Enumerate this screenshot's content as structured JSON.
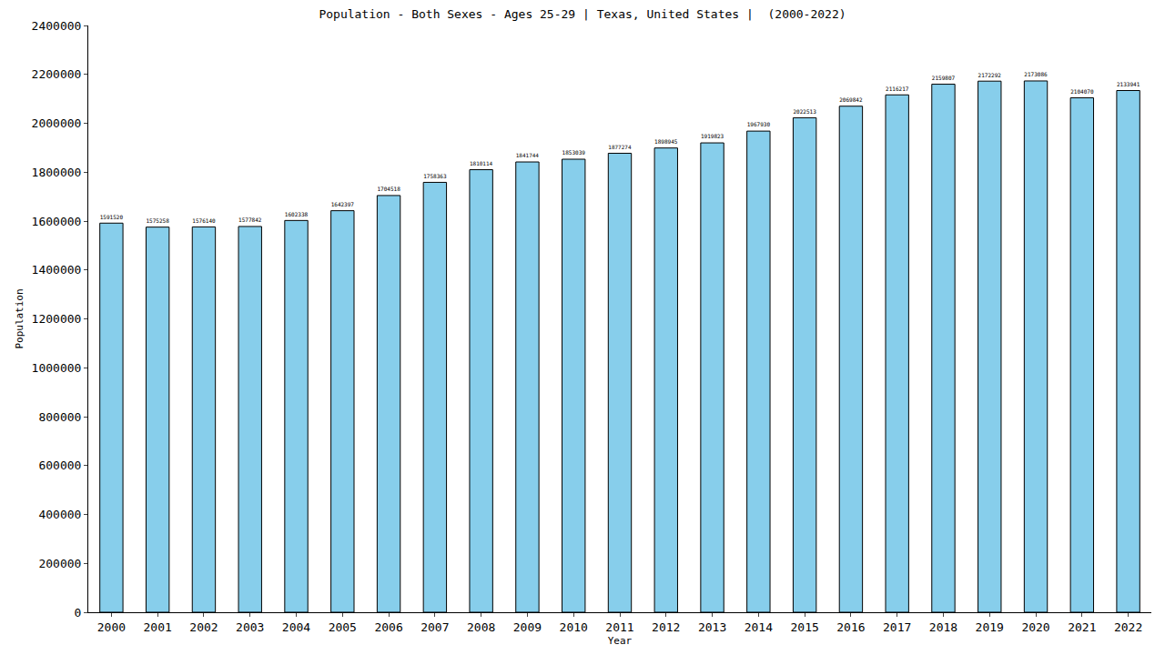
{
  "chart_data": {
    "type": "bar",
    "title": "Population - Both Sexes - Ages 25-29 | Texas, United States |  (2000-2022)",
    "x_label": "Year",
    "y_label": "Population",
    "categories": [
      "2000",
      "2001",
      "2002",
      "2003",
      "2004",
      "2005",
      "2006",
      "2007",
      "2008",
      "2009",
      "2010",
      "2011",
      "2012",
      "2013",
      "2014",
      "2015",
      "2016",
      "2017",
      "2018",
      "2019",
      "2020",
      "2021",
      "2022"
    ],
    "values": [
      1591520,
      1575258,
      1576140,
      1577842,
      1602338,
      1642397,
      1704518,
      1758363,
      1810114,
      1841744,
      1853039,
      1877274,
      1898945,
      1919823,
      1967930,
      2022513,
      2069842,
      2116217,
      2159807,
      2172292,
      2173086,
      2104070,
      2133941
    ],
    "color": "#87ceeb",
    "ylim": [
      0,
      2400000
    ],
    "yticks": [
      0,
      200000,
      400000,
      600000,
      800000,
      1000000,
      1200000,
      1400000,
      1600000,
      1800000,
      2000000,
      2200000,
      2400000
    ],
    "grid": false,
    "data_labels": true
  }
}
